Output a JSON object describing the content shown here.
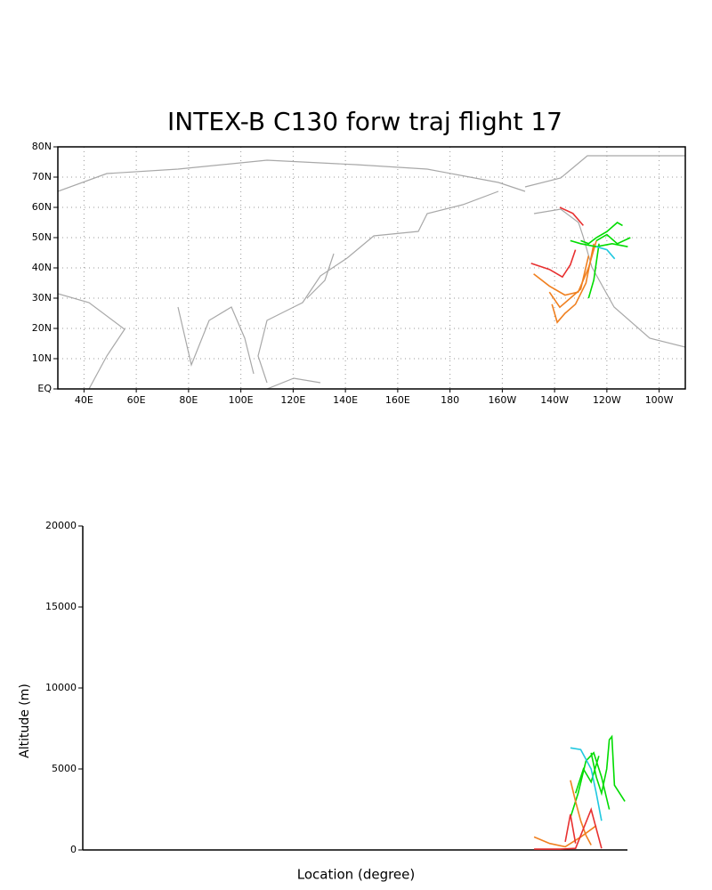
{
  "chart_data": [
    {
      "type": "line",
      "title": "INTEX-B C130 forw traj flight 17",
      "xlim": [
        30,
        270
      ],
      "ylim": [
        0,
        80
      ],
      "grid": true,
      "xticks": [
        {
          "value": 40,
          "label": "40E"
        },
        {
          "value": 60,
          "label": "60E"
        },
        {
          "value": 80,
          "label": "80E"
        },
        {
          "value": 100,
          "label": "100E"
        },
        {
          "value": 120,
          "label": "120E"
        },
        {
          "value": 140,
          "label": "140E"
        },
        {
          "value": 160,
          "label": "160E"
        },
        180,
        {
          "value": 200,
          "label": "160W"
        },
        {
          "value": 220,
          "label": "140W"
        },
        {
          "value": 240,
          "label": "120W"
        },
        {
          "value": 260,
          "label": "100W"
        }
      ],
      "yticks": [
        {
          "value": 0,
          "label": "EQ"
        },
        {
          "value": 10,
          "label": "10N"
        },
        {
          "value": 20,
          "label": "20N"
        },
        {
          "value": 30,
          "label": "30N"
        },
        {
          "value": 40,
          "label": "40N"
        },
        {
          "value": 50,
          "label": "50N"
        },
        {
          "value": 60,
          "label": "60N"
        },
        {
          "value": 70,
          "label": "70N"
        },
        {
          "value": 80,
          "label": "80N"
        }
      ],
      "series": [
        {
          "color": "#e83030",
          "x": [
            211,
            218,
            223,
            226,
            228
          ],
          "values": [
            41.5,
            39.5,
            37,
            41,
            46
          ]
        },
        {
          "color": "#e83030",
          "x": [
            222,
            227,
            231
          ],
          "values": [
            60,
            58,
            54
          ]
        },
        {
          "color": "#f08020",
          "x": [
            212,
            218,
            224,
            229,
            233,
            236
          ],
          "values": [
            38,
            34,
            31,
            32,
            40,
            49
          ]
        },
        {
          "color": "#f08020",
          "x": [
            219,
            221,
            224,
            228,
            232,
            235
          ],
          "values": [
            28,
            22,
            25,
            28,
            35,
            48
          ]
        },
        {
          "color": "#f08020",
          "x": [
            218,
            222,
            226,
            230,
            233
          ],
          "values": [
            32,
            27,
            30,
            33,
            44
          ]
        },
        {
          "color": "#00dc00",
          "x": [
            230,
            233,
            236,
            240,
            244,
            246
          ],
          "values": [
            49,
            48,
            50,
            52,
            55,
            54
          ]
        },
        {
          "color": "#00dc00",
          "x": [
            226,
            230,
            236,
            242,
            248
          ],
          "values": [
            49,
            48,
            47,
            48,
            47
          ]
        },
        {
          "color": "#00dc00",
          "x": [
            233,
            235,
            236,
            237
          ],
          "values": [
            30,
            36,
            42,
            48
          ]
        },
        {
          "color": "#00dc00",
          "x": [
            236,
            240,
            244,
            249
          ],
          "values": [
            49,
            51,
            48,
            50
          ]
        },
        {
          "color": "#20c8e0",
          "x": [
            236,
            240,
            243
          ],
          "values": [
            47,
            46,
            43
          ]
        }
      ]
    },
    {
      "type": "line",
      "x_label": "Location (degree)",
      "y_label": "Altitude (m)",
      "xlim": [
        40,
        250
      ],
      "ylim": [
        0,
        20000
      ],
      "yticks": [
        0,
        5000,
        10000,
        15000,
        20000
      ],
      "series": [
        {
          "color": "#00dc00",
          "x": [
            236,
            238,
            240,
            242,
            243,
            244,
            245,
            249
          ],
          "values": [
            6000,
            4500,
            3500,
            5000,
            6800,
            7000,
            4000,
            3000
          ]
        },
        {
          "color": "#00dc00",
          "x": [
            228,
            231,
            234,
            237,
            240,
            243
          ],
          "values": [
            2000,
            3500,
            5500,
            6000,
            4500,
            2500
          ]
        },
        {
          "color": "#00dc00",
          "x": [
            230,
            233,
            236,
            239
          ],
          "values": [
            3500,
            5000,
            4200,
            5800
          ]
        },
        {
          "color": "#20c8e0",
          "x": [
            228,
            232,
            236,
            238,
            240
          ],
          "values": [
            6300,
            6200,
            5000,
            3500,
            1800
          ]
        },
        {
          "color": "#f08020",
          "x": [
            214,
            220,
            226,
            232,
            238
          ],
          "values": [
            800,
            400,
            200,
            800,
            1500
          ]
        },
        {
          "color": "#f08020",
          "x": [
            228,
            230,
            232,
            234,
            236
          ],
          "values": [
            4300,
            3000,
            1800,
            900,
            300
          ]
        },
        {
          "color": "#e83030",
          "x": [
            214,
            224,
            230,
            236,
            240
          ],
          "values": [
            50,
            50,
            100,
            2500,
            100
          ]
        },
        {
          "color": "#e83030",
          "x": [
            226,
            228,
            230
          ],
          "values": [
            500,
            2200,
            400
          ]
        }
      ]
    }
  ]
}
